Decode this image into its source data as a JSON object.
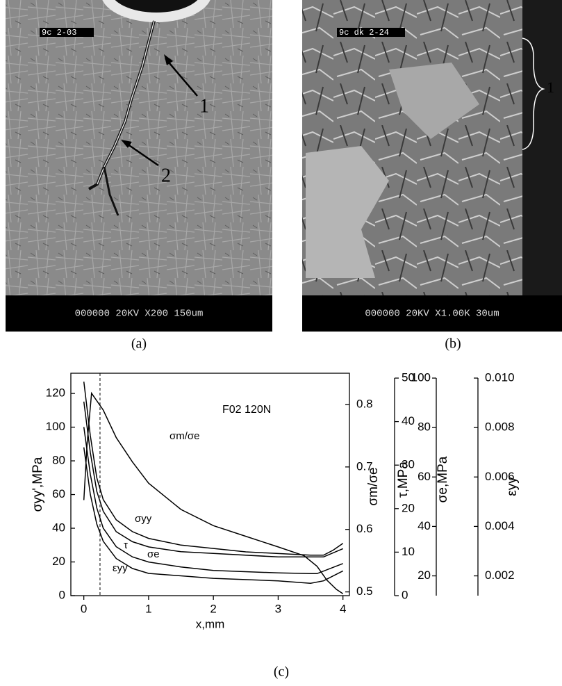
{
  "figure": {
    "panels": [
      {
        "label": "(a)",
        "header_text": "9c 2-03",
        "footer_text": "000000 20KV X200 150um",
        "callouts": [
          "1",
          "2"
        ]
      },
      {
        "label": "(b)",
        "header_text": "9c dk 2-24",
        "footer_text": "000000 20KV X1.00K 30um",
        "callouts": [
          "1"
        ]
      }
    ],
    "chart_label": "(c)"
  },
  "chart_data": {
    "type": "line",
    "annotation": "F02 120N",
    "x_label": "x,mm",
    "xlim": [
      -0.2,
      4.1
    ],
    "xticks": [
      0,
      1,
      2,
      3,
      4
    ],
    "y_label": "σyy',MPa",
    "ylim": [
      0,
      132
    ],
    "yticks": [
      0,
      20,
      40,
      60,
      80,
      100,
      120
    ],
    "y2_label": "σm/σe",
    "y2lim": [
      0.494,
      0.85
    ],
    "y2ticks": [
      0.5,
      0.6,
      0.7,
      0.8
    ],
    "y3_label": "τ,MPa",
    "y3lim": [
      0,
      50
    ],
    "y3ticks": [
      0,
      10,
      20,
      30,
      40,
      50
    ],
    "y4_label": "σe,MPa",
    "y4lim": [
      12,
      100
    ],
    "y4ticks": [
      20,
      40,
      60,
      80,
      100
    ],
    "y5_label": "εyy",
    "y5lim": [
      0.0012,
      0.01
    ],
    "y5ticks": [
      0.002,
      0.004,
      0.006,
      0.008,
      {
        "value": 0.01,
        "label": "0.010"
      }
    ],
    "vline": 0.25,
    "color": "#000000",
    "series": [
      {
        "name": "σm/σe",
        "axis": "y2",
        "x": [
          0,
          0.05,
          0.12,
          0.3,
          0.5,
          0.75,
          1,
          1.5,
          2,
          2.5,
          3,
          3.4,
          3.6,
          3.75,
          3.9,
          4.0
        ],
        "values": [
          0.647,
          0.736,
          0.818,
          0.791,
          0.747,
          0.708,
          0.674,
          0.632,
          0.606,
          0.589,
          0.572,
          0.558,
          0.541,
          0.519,
          0.504,
          0.497
        ]
      },
      {
        "name": "σyy",
        "axis": "y",
        "x": [
          0,
          0.1,
          0.2,
          0.3,
          0.5,
          0.75,
          1,
          1.5,
          2,
          2.5,
          3,
          3.5,
          3.7,
          3.85,
          4
        ],
        "values": [
          127,
          95,
          70,
          57,
          45,
          38,
          34,
          30,
          28,
          26,
          25,
          24,
          24,
          27,
          31
        ]
      },
      {
        "name": "τ",
        "axis": "y3",
        "x": [
          0,
          0.1,
          0.2,
          0.3,
          0.5,
          0.75,
          1,
          1.5,
          2,
          3,
          3.5,
          3.7,
          4
        ],
        "values": [
          44.6,
          32.9,
          24,
          19.4,
          14.7,
          12.4,
          11.2,
          10.1,
          9.7,
          8.9,
          8.9,
          8.9,
          10.8
        ]
      },
      {
        "name": "σe",
        "axis": "y4",
        "x": [
          0,
          0.1,
          0.2,
          0.3,
          0.5,
          0.75,
          1,
          1.5,
          2,
          3,
          3.5,
          3.6,
          4
        ],
        "values": [
          80.2,
          61.1,
          47.5,
          39.3,
          31.8,
          27.7,
          25.6,
          23.6,
          22.2,
          21.2,
          20.9,
          20.9,
          25.0
        ]
      },
      {
        "name": "εyy",
        "axis": "y5",
        "x": [
          0,
          0.1,
          0.2,
          0.3,
          0.5,
          0.75,
          1,
          1.5,
          2,
          3,
          3.5,
          3.7,
          4
        ],
        "values": [
          0.0072,
          0.0053,
          0.0041,
          0.0034,
          0.0027,
          0.0023,
          0.0021,
          0.002,
          0.0019,
          0.0018,
          0.0017,
          0.0018,
          0.0022
        ]
      }
    ]
  }
}
